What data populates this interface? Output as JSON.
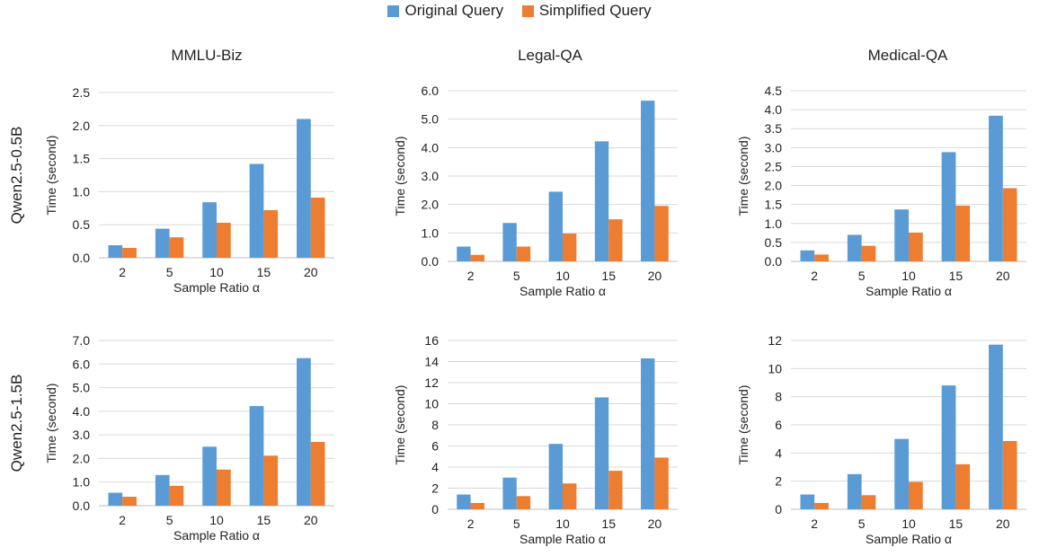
{
  "colors": {
    "original": "#5b9bd5",
    "simplified": "#ed7d31",
    "grid": "#d9d9d9"
  },
  "legend": {
    "original": "Original Query",
    "simplified": "Simplified Query",
    "placement": "top-center"
  },
  "rows": [
    "Qwen2.5-0.5B",
    "Qwen2.5-1.5B"
  ],
  "columns": [
    "MMLU-Biz",
    "Legal-QA",
    "Medical-QA"
  ],
  "chart_data": [
    {
      "type": "bar",
      "title": "MMLU-Biz",
      "row_label": "Qwen2.5-0.5B",
      "xlabel": "Sample Ratio α",
      "ylabel": "Time (second)",
      "categories": [
        "2",
        "5",
        "10",
        "15",
        "20"
      ],
      "ylim": [
        0,
        2.5
      ],
      "yticks": [
        "0.0",
        "0.5",
        "1.0",
        "1.5",
        "2.0",
        "2.5"
      ],
      "grid": true,
      "series": [
        {
          "name": "Original Query",
          "values": [
            0.19,
            0.44,
            0.84,
            1.42,
            2.1
          ]
        },
        {
          "name": "Simplified Query",
          "values": [
            0.15,
            0.31,
            0.53,
            0.72,
            0.91
          ]
        }
      ]
    },
    {
      "type": "bar",
      "title": "Legal-QA",
      "row_label": "Qwen2.5-0.5B",
      "xlabel": "Sample Ratio α",
      "ylabel": "Time (second)",
      "categories": [
        "2",
        "5",
        "10",
        "15",
        "20"
      ],
      "ylim": [
        0,
        6
      ],
      "yticks": [
        "0.0",
        "1.0",
        "2.0",
        "3.0",
        "4.0",
        "5.0",
        "6.0"
      ],
      "grid": true,
      "series": [
        {
          "name": "Original Query",
          "values": [
            0.52,
            1.35,
            2.45,
            4.22,
            5.65
          ]
        },
        {
          "name": "Simplified Query",
          "values": [
            0.23,
            0.52,
            0.98,
            1.48,
            1.95
          ]
        }
      ]
    },
    {
      "type": "bar",
      "title": "Medical-QA",
      "row_label": "Qwen2.5-0.5B",
      "xlabel": "Sample Ratio α",
      "ylabel": "Time (second)",
      "categories": [
        "2",
        "5",
        "10",
        "15",
        "20"
      ],
      "ylim": [
        0,
        4.5
      ],
      "yticks": [
        "0.0",
        "0.5",
        "1.0",
        "1.5",
        "2.0",
        "2.5",
        "3.0",
        "3.5",
        "4.0",
        "4.5"
      ],
      "grid": true,
      "series": [
        {
          "name": "Original Query",
          "values": [
            0.29,
            0.7,
            1.37,
            2.88,
            3.84
          ]
        },
        {
          "name": "Simplified Query",
          "values": [
            0.18,
            0.41,
            0.76,
            1.47,
            1.93
          ]
        }
      ]
    },
    {
      "type": "bar",
      "title": "",
      "row_label": "Qwen2.5-1.5B",
      "xlabel": "Sample Ratio α",
      "ylabel": "Time (second)",
      "categories": [
        "2",
        "5",
        "10",
        "15",
        "20"
      ],
      "ylim": [
        0,
        7
      ],
      "yticks": [
        "0.0",
        "1.0",
        "2.0",
        "3.0",
        "4.0",
        "5.0",
        "6.0",
        "7.0"
      ],
      "grid": true,
      "series": [
        {
          "name": "Original Query",
          "values": [
            0.55,
            1.3,
            2.5,
            4.22,
            6.25
          ]
        },
        {
          "name": "Simplified Query",
          "values": [
            0.38,
            0.84,
            1.53,
            2.12,
            2.7
          ]
        }
      ]
    },
    {
      "type": "bar",
      "title": "",
      "row_label": "Qwen2.5-1.5B",
      "xlabel": "Sample Ratio α",
      "ylabel": "Time (second)",
      "categories": [
        "2",
        "5",
        "10",
        "15",
        "20"
      ],
      "ylim": [
        0,
        16
      ],
      "yticks": [
        "0",
        "2",
        "4",
        "6",
        "8",
        "10",
        "12",
        "14",
        "16"
      ],
      "grid": true,
      "series": [
        {
          "name": "Original Query",
          "values": [
            1.4,
            3.0,
            6.2,
            10.6,
            14.3
          ]
        },
        {
          "name": "Simplified Query",
          "values": [
            0.6,
            1.25,
            2.45,
            3.65,
            4.9
          ]
        }
      ]
    },
    {
      "type": "bar",
      "title": "",
      "row_label": "Qwen2.5-1.5B",
      "xlabel": "Sample Ratio α",
      "ylabel": "Time (second)",
      "categories": [
        "2",
        "5",
        "10",
        "15",
        "20"
      ],
      "ylim": [
        0,
        12
      ],
      "yticks": [
        "0",
        "2",
        "4",
        "6",
        "8",
        "10",
        "12"
      ],
      "grid": true,
      "series": [
        {
          "name": "Original Query",
          "values": [
            1.05,
            2.5,
            5.0,
            8.8,
            11.7
          ]
        },
        {
          "name": "Simplified Query",
          "values": [
            0.45,
            1.0,
            1.95,
            3.2,
            4.85
          ]
        }
      ]
    }
  ]
}
